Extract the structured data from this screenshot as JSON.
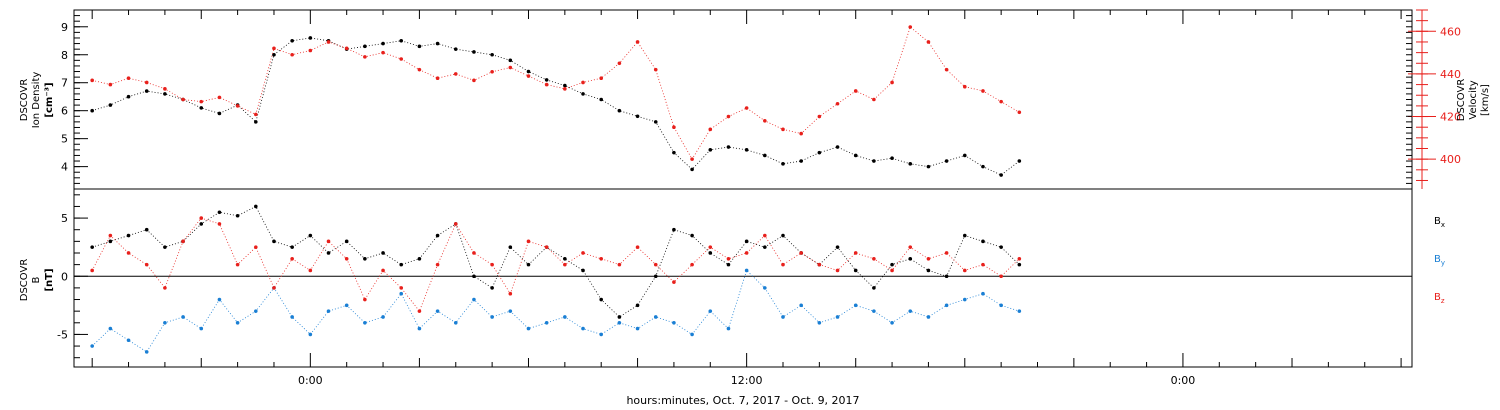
{
  "chart_data": [
    {
      "type": "scatter",
      "panel": "top",
      "ylabel_lines": [
        "DSCOVR",
        "Ion Density",
        "[cm⁻³]"
      ],
      "y2label_lines": [
        "DSCOVR",
        "Velocity",
        "[km/s]"
      ],
      "ylim": [
        3.2,
        9.6
      ],
      "y2lim": [
        386,
        470
      ],
      "yticks": [
        "4",
        "5",
        "6",
        "7",
        "8",
        "9"
      ],
      "y2ticks": [
        "400",
        "420",
        "440",
        "460"
      ],
      "colors": {
        "density": "#000000",
        "velocity": "#e8201c"
      },
      "series": [
        {
          "axis": "left",
          "color": "#000000",
          "x": [
            -6,
            -5.5,
            -5,
            -4.5,
            -4,
            -3.5,
            -3,
            -2.5,
            -2,
            -1.5,
            -1,
            -0.5,
            0,
            0.5,
            1,
            1.5,
            2,
            2.5,
            3,
            3.5,
            4,
            4.5,
            5,
            5.5,
            6,
            6.5,
            7,
            7.5,
            8,
            8.5,
            9,
            9.5,
            10,
            10.5,
            11,
            11.5,
            12,
            12.5,
            13,
            13.5,
            14,
            14.5,
            15,
            15.5,
            16,
            16.5,
            17,
            17.5,
            18,
            18.5,
            19,
            19.5
          ],
          "values": [
            6.0,
            6.2,
            6.5,
            6.7,
            6.6,
            6.4,
            6.1,
            5.9,
            6.2,
            5.6,
            8.0,
            8.5,
            8.6,
            8.5,
            8.2,
            8.3,
            8.4,
            8.5,
            8.3,
            8.4,
            8.2,
            8.1,
            8.0,
            7.8,
            7.4,
            7.1,
            6.9,
            6.6,
            6.4,
            6.0,
            5.8,
            5.6,
            4.5,
            3.9,
            4.6,
            4.7,
            4.6,
            4.4,
            4.1,
            4.2,
            4.5,
            4.7,
            4.4,
            4.2,
            4.3,
            4.1,
            4.0,
            4.2,
            4.4,
            4.0,
            3.7,
            4.2
          ]
        },
        {
          "axis": "right",
          "color": "#e8201c",
          "x": [
            -6,
            -5.5,
            -5,
            -4.5,
            -4,
            -3.5,
            -3,
            -2.5,
            -2,
            -1.5,
            -1,
            -0.5,
            0,
            0.5,
            1,
            1.5,
            2,
            2.5,
            3,
            3.5,
            4,
            4.5,
            5,
            5.5,
            6,
            6.5,
            7,
            7.5,
            8,
            8.5,
            9,
            9.5,
            10,
            10.5,
            11,
            11.5,
            12,
            12.5,
            13,
            13.5,
            14,
            14.5,
            15,
            15.5,
            16,
            16.5,
            17,
            17.5,
            18,
            18.5,
            19,
            19.5
          ],
          "values": [
            437,
            435,
            438,
            436,
            433,
            428,
            427,
            429,
            425,
            421,
            452,
            449,
            451,
            455,
            452,
            448,
            450,
            447,
            442,
            438,
            440,
            437,
            441,
            443,
            439,
            435,
            433,
            436,
            438,
            445,
            455,
            442,
            415,
            400,
            414,
            420,
            424,
            418,
            414,
            412,
            420,
            426,
            432,
            428,
            436,
            462,
            455,
            442,
            434,
            432,
            427,
            422
          ]
        }
      ]
    },
    {
      "type": "scatter",
      "panel": "bottom",
      "ylabel_lines": [
        "DSCOVR",
        "B",
        "[nT]"
      ],
      "ylim": [
        -7.8,
        7.5
      ],
      "yticks": [
        "-5",
        "0",
        "5"
      ],
      "xlabel": "hours:minutes, Oct.  7, 2017 - Oct.  9, 2017",
      "xticks": [
        "0:00",
        "12:00",
        "0:00"
      ],
      "xlim": [
        -6.5,
        30.3
      ],
      "legend": [
        {
          "label": "B",
          "sub": "x",
          "color": "#000000"
        },
        {
          "label": "B",
          "sub": "y",
          "color": "#1a7fd4"
        },
        {
          "label": "B",
          "sub": "z",
          "color": "#e8201c"
        }
      ],
      "series": [
        {
          "name": "Bx",
          "color": "#000000",
          "x": [
            -6,
            -5.5,
            -5,
            -4.5,
            -4,
            -3.5,
            -3,
            -2.5,
            -2,
            -1.5,
            -1,
            -0.5,
            0,
            0.5,
            1,
            1.5,
            2,
            2.5,
            3,
            3.5,
            4,
            4.5,
            5,
            5.5,
            6,
            6.5,
            7,
            7.5,
            8,
            8.5,
            9,
            9.5,
            10,
            10.5,
            11,
            11.5,
            12,
            12.5,
            13,
            13.5,
            14,
            14.5,
            15,
            15.5,
            16,
            16.5,
            17,
            17.5,
            18,
            18.5,
            19,
            19.5
          ],
          "values": [
            2.5,
            3.0,
            3.5,
            4.0,
            2.5,
            3.0,
            4.5,
            5.5,
            5.2,
            6.0,
            3.0,
            2.5,
            3.5,
            2.0,
            3.0,
            1.5,
            2.0,
            1.0,
            1.5,
            3.5,
            4.5,
            0.0,
            -1.0,
            2.5,
            1.0,
            2.5,
            1.5,
            0.5,
            -2.0,
            -3.5,
            -2.5,
            0.0,
            4.0,
            3.5,
            2.0,
            1.0,
            3.0,
            2.5,
            3.5,
            2.0,
            1.0,
            2.5,
            0.5,
            -1.0,
            1.0,
            1.5,
            0.5,
            0.0,
            3.5,
            3.0,
            2.5,
            1.0
          ]
        },
        {
          "name": "By",
          "color": "#1a7fd4",
          "x": [
            -6,
            -5.5,
            -5,
            -4.5,
            -4,
            -3.5,
            -3,
            -2.5,
            -2,
            -1.5,
            -1,
            -0.5,
            0,
            0.5,
            1,
            1.5,
            2,
            2.5,
            3,
            3.5,
            4,
            4.5,
            5,
            5.5,
            6,
            6.5,
            7,
            7.5,
            8,
            8.5,
            9,
            9.5,
            10,
            10.5,
            11,
            11.5,
            12,
            12.5,
            13,
            13.5,
            14,
            14.5,
            15,
            15.5,
            16,
            16.5,
            17,
            17.5,
            18,
            18.5,
            19,
            19.5
          ],
          "values": [
            -6.0,
            -4.5,
            -5.5,
            -6.5,
            -4.0,
            -3.5,
            -4.5,
            -2.0,
            -4.0,
            -3.0,
            -1.0,
            -3.5,
            -5.0,
            -3.0,
            -2.5,
            -4.0,
            -3.5,
            -1.5,
            -4.5,
            -3.0,
            -4.0,
            -2.0,
            -3.5,
            -3.0,
            -4.5,
            -4.0,
            -3.5,
            -4.5,
            -5.0,
            -4.0,
            -4.5,
            -3.5,
            -4.0,
            -5.0,
            -3.0,
            -4.5,
            0.5,
            -1.0,
            -3.5,
            -2.5,
            -4.0,
            -3.5,
            -2.5,
            -3.0,
            -4.0,
            -3.0,
            -3.5,
            -2.5,
            -2.0,
            -1.5,
            -2.5,
            -3.0
          ]
        },
        {
          "name": "Bz",
          "color": "#e8201c",
          "x": [
            -6,
            -5.5,
            -5,
            -4.5,
            -4,
            -3.5,
            -3,
            -2.5,
            -2,
            -1.5,
            -1,
            -0.5,
            0,
            0.5,
            1,
            1.5,
            2,
            2.5,
            3,
            3.5,
            4,
            4.5,
            5,
            5.5,
            6,
            6.5,
            7,
            7.5,
            8,
            8.5,
            9,
            9.5,
            10,
            10.5,
            11,
            11.5,
            12,
            12.5,
            13,
            13.5,
            14,
            14.5,
            15,
            15.5,
            16,
            16.5,
            17,
            17.5,
            18,
            18.5,
            19,
            19.5
          ],
          "values": [
            0.5,
            3.5,
            2.0,
            1.0,
            -1.0,
            3.0,
            5.0,
            4.5,
            1.0,
            2.5,
            -1.0,
            1.5,
            0.5,
            3.0,
            1.5,
            -2.0,
            0.5,
            -1.0,
            -3.0,
            1.0,
            4.5,
            2.0,
            1.0,
            -1.5,
            3.0,
            2.5,
            1.0,
            2.0,
            1.5,
            1.0,
            2.5,
            1.0,
            -0.5,
            1.0,
            2.5,
            1.5,
            2.0,
            3.5,
            1.0,
            2.0,
            1.0,
            0.5,
            2.0,
            1.5,
            0.5,
            2.5,
            1.5,
            2.0,
            0.5,
            1.0,
            0.0,
            1.5
          ]
        }
      ]
    }
  ]
}
